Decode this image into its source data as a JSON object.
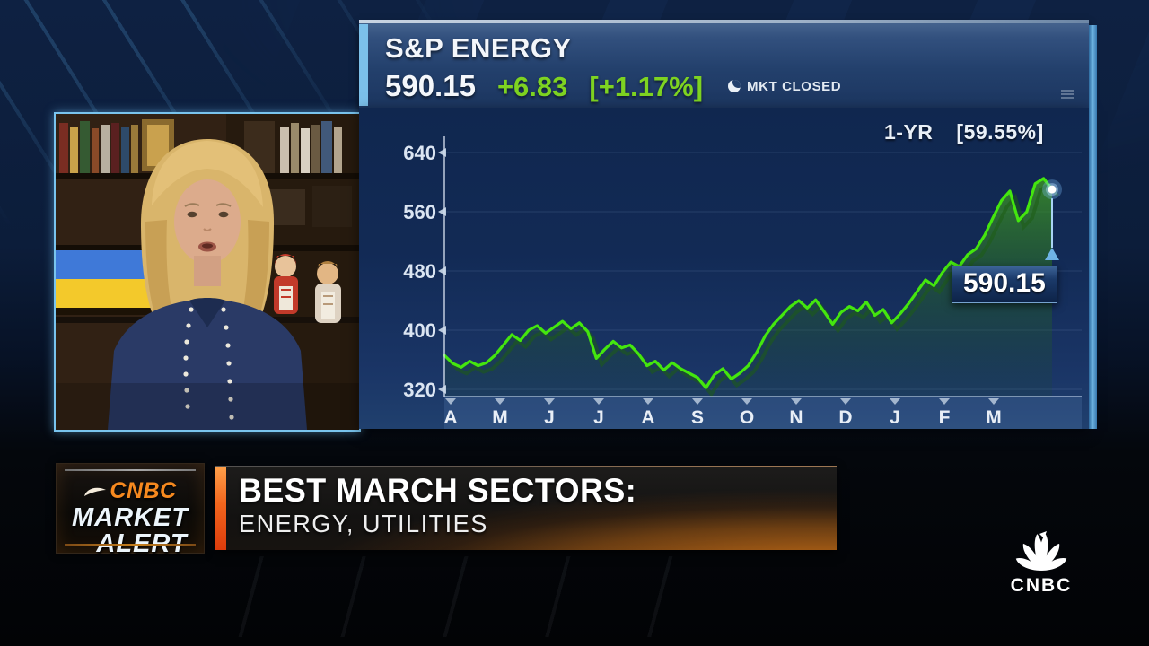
{
  "quote_header": {
    "symbol": "S&P ENERGY",
    "last_price": "590.15",
    "change": "+6.83",
    "change_pct": "[+1.17%]",
    "market_status": "MKT CLOSED",
    "status_icon": "crescent-moon-icon"
  },
  "chart_data": {
    "type": "area",
    "title": "S&P ENERGY 1-year price chart",
    "period_label": "1-YR",
    "period_return": "[59.55%]",
    "callout_value": "590.15",
    "x_tick_labels": [
      "A",
      "M",
      "J",
      "J",
      "A",
      "S",
      "O",
      "N",
      "D",
      "J",
      "F",
      "M"
    ],
    "y_tick_labels": [
      640,
      560,
      480,
      400,
      320
    ],
    "ylim": [
      312,
      666
    ],
    "grid": "off",
    "legend": "none",
    "line_color": "#44e60e",
    "fill_color": "#2f7a1e",
    "values": [
      366,
      355,
      350,
      358,
      352,
      356,
      366,
      380,
      394,
      386,
      400,
      406,
      396,
      404,
      412,
      402,
      410,
      398,
      362,
      374,
      385,
      376,
      380,
      368,
      352,
      358,
      346,
      356,
      348,
      342,
      336,
      322,
      340,
      348,
      334,
      342,
      352,
      370,
      392,
      408,
      420,
      432,
      440,
      430,
      441,
      425,
      408,
      424,
      432,
      426,
      438,
      420,
      428,
      410,
      422,
      436,
      452,
      468,
      460,
      478,
      492,
      486,
      502,
      510,
      528,
      552,
      575,
      588,
      548,
      560,
      598,
      605,
      590.15
    ]
  },
  "lower_third": {
    "badge": {
      "network": "CNBC",
      "line1": "MARKET",
      "line2": "ALERT",
      "icon": "peacock-swoosh-icon"
    },
    "headline": "BEST MARCH SECTORS:",
    "subheadline": "ENERGY, UTILITIES"
  },
  "network_bug": {
    "label": "CNBC",
    "icon": "nbc-peacock-icon"
  },
  "colors": {
    "positive_green": "#7ed321",
    "chart_line_green": "#44e60e",
    "alert_orange": "#f6891f",
    "panel_blue": "#20406e",
    "callout_bg": "#122a52"
  }
}
